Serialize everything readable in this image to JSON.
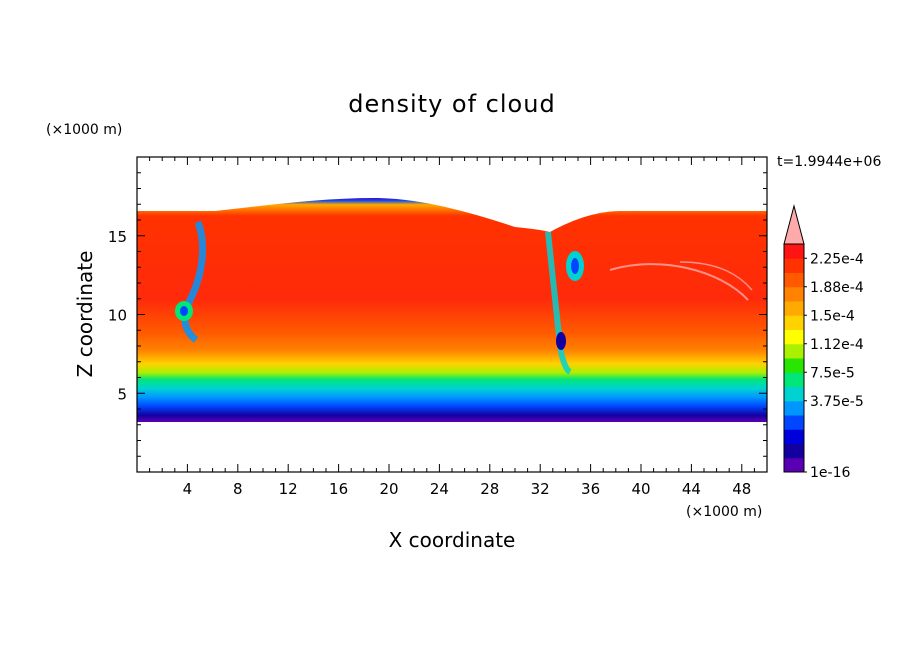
{
  "chart_data": {
    "type": "heatmap",
    "title": "density of cloud",
    "xlabel": "X coordinate",
    "ylabel": "Z coordinate",
    "x_unit": "(×1000 m)",
    "y_unit": "(×1000 m)",
    "time_label": "t=1.9944e+06",
    "xlim": [
      0,
      50
    ],
    "ylim": [
      0,
      20
    ],
    "x_ticks": [
      "4",
      "8",
      "12",
      "16",
      "20",
      "24",
      "28",
      "32",
      "36",
      "40",
      "44",
      "48"
    ],
    "y_ticks": [
      "5",
      "10",
      "15"
    ],
    "colorbar": {
      "labels": [
        "2.25e-4",
        "1.88e-4",
        "1.5e-4",
        "1.12e-4",
        "7.5e-5",
        "3.75e-5",
        "1e-16"
      ],
      "colors": [
        "#5a00b4",
        "#1400a0",
        "#0000dc",
        "#0046ff",
        "#0096ff",
        "#00d2d2",
        "#00e678",
        "#28e600",
        "#aaf000",
        "#ffff00",
        "#ffd200",
        "#ffaa00",
        "#ff8200",
        "#ff5a00",
        "#ff3200",
        "#ff1414"
      ],
      "extend_color": "#ffaaaa"
    }
  }
}
